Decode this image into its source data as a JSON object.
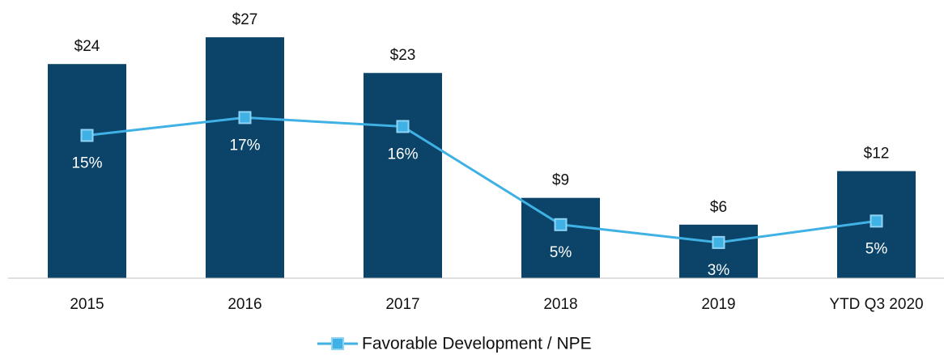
{
  "chart_data": {
    "type": "bar",
    "categories": [
      "2015",
      "2016",
      "2017",
      "2018",
      "2019",
      "YTD Q3 2020"
    ],
    "series": [
      {
        "type": "bar",
        "color": "#0b4468",
        "values": [
          24,
          27,
          23,
          9,
          6,
          12
        ],
        "value_labels": [
          "$24",
          "$27",
          "$23",
          "$9",
          "$6",
          "$12"
        ]
      },
      {
        "type": "line",
        "axis": "y2",
        "name": "Favorable Development / NPE",
        "color": "#3fb1e5",
        "values": [
          15,
          17,
          16,
          5,
          3,
          5.4
        ],
        "value_labels": [
          "15%",
          "17%",
          "16%",
          "5%",
          "3%",
          "5%"
        ]
      }
    ],
    "ylim": [
      0,
      30
    ],
    "y2lim": [
      -1,
      29
    ],
    "legend": "bottom"
  }
}
